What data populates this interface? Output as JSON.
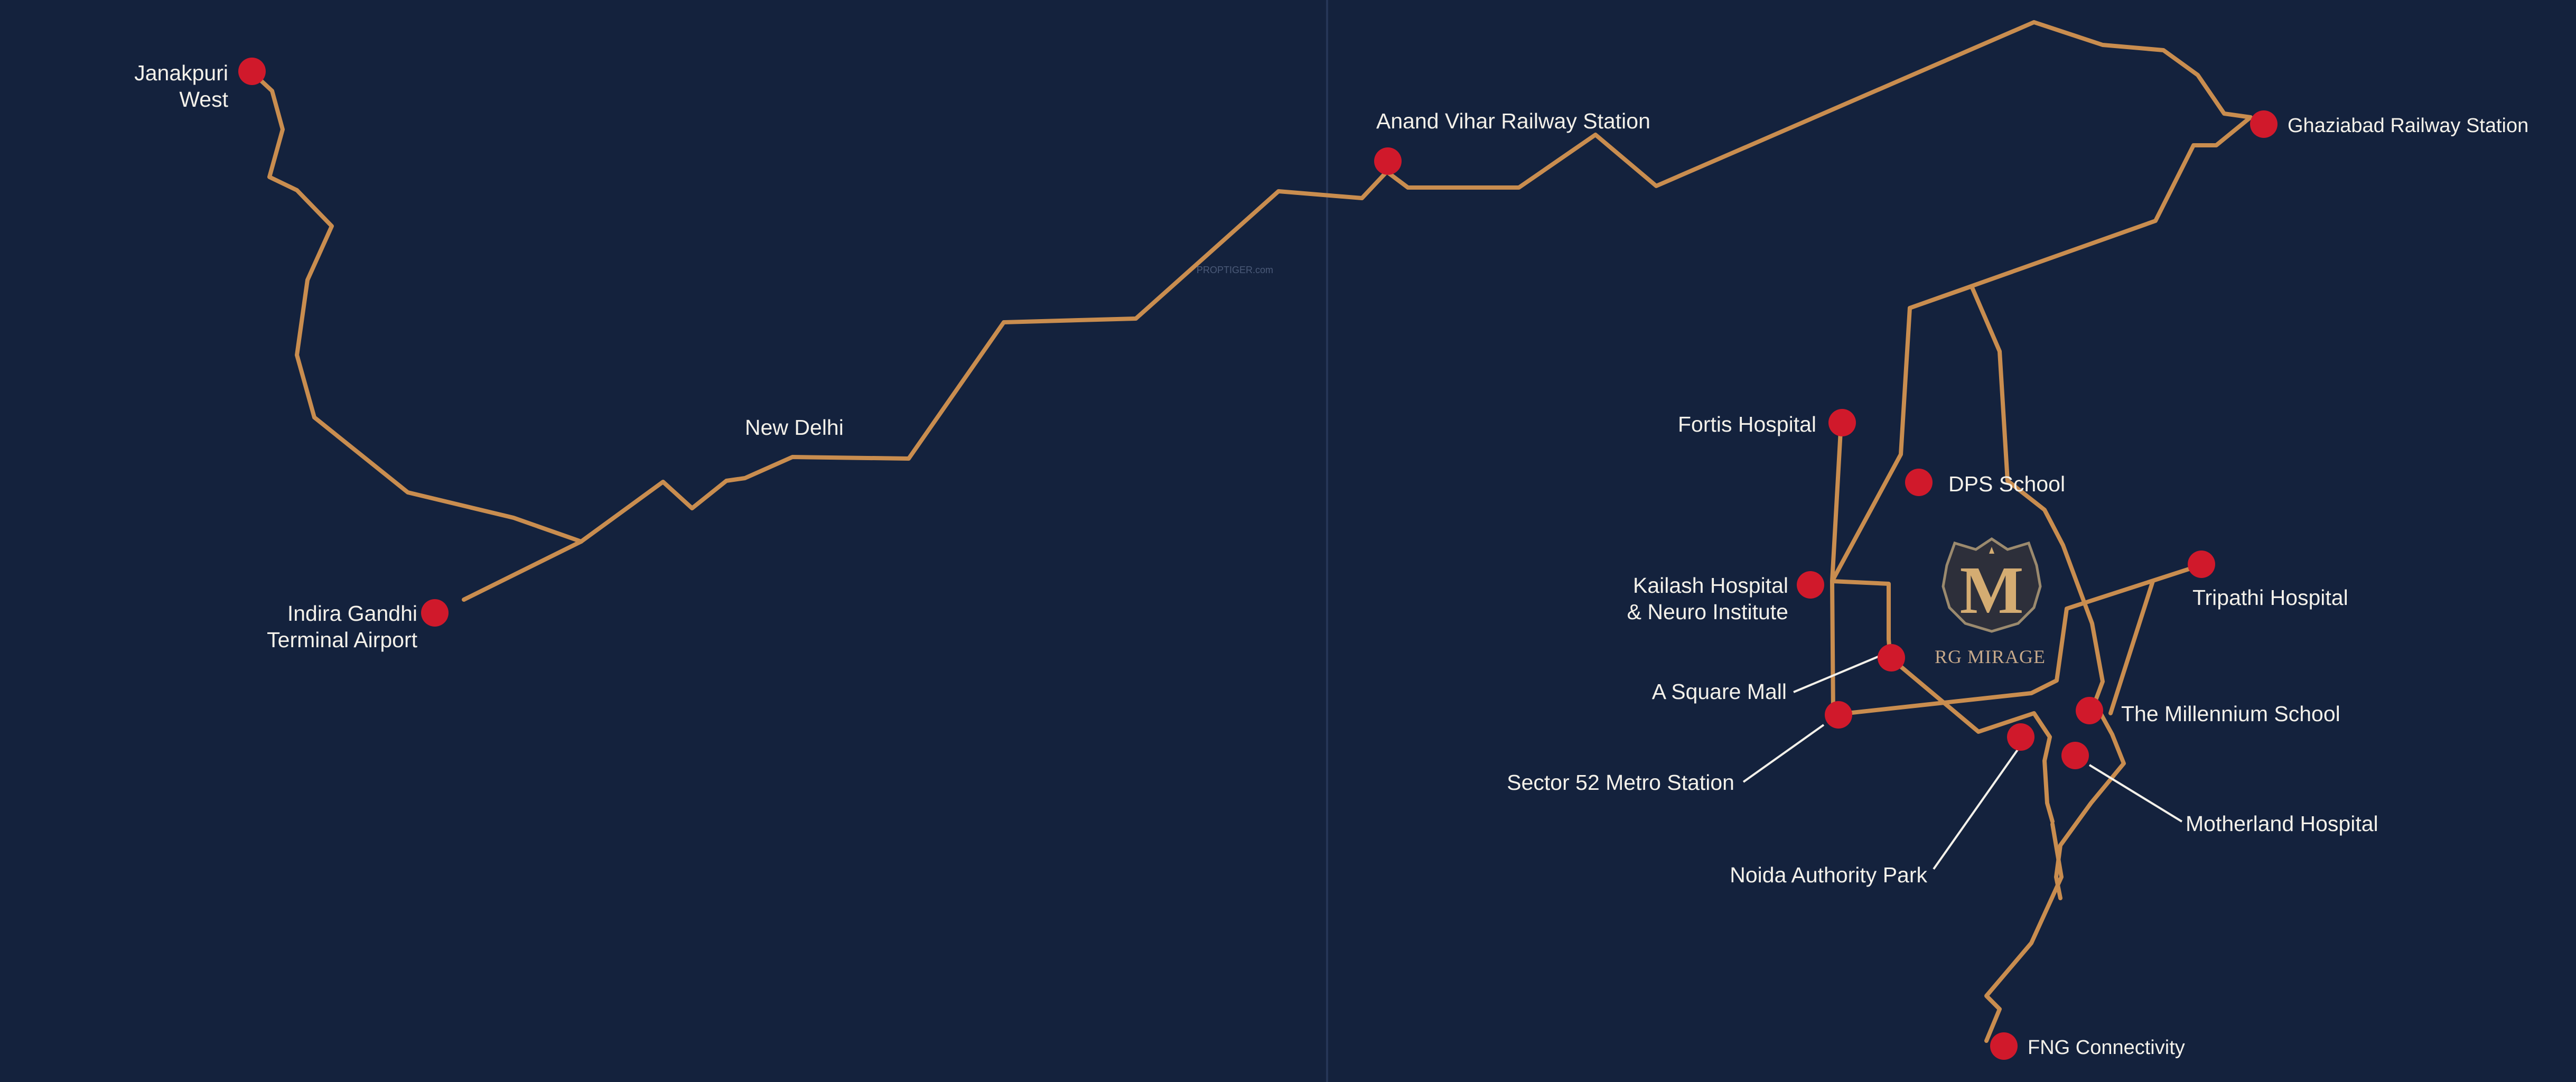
{
  "map": {
    "watermark": "PROPTIGER.com",
    "project": {
      "logo_letter": "M",
      "name": "RG MIRAGE"
    },
    "locations": {
      "janakpuri_west": [
        "Janakpuri",
        "West"
      ],
      "igi_airport": [
        "Indira Gandhi",
        "Terminal Airport"
      ],
      "new_delhi": "New Delhi",
      "anand_vihar": "Anand Vihar Railway Station",
      "ghaziabad": "Ghaziabad Railway Station",
      "fortis": "Fortis Hospital",
      "dps": "DPS School",
      "kailash": [
        "Kailash Hospital",
        "& Neuro Institute"
      ],
      "tripathi": "Tripathi Hospital",
      "a_square_mall": "A Square Mall",
      "millennium": "The Millennium School",
      "sector52": "Sector 52 Metro Station",
      "motherland": "Motherland Hospital",
      "noida_authority_park": "Noida Authority Park",
      "fng": "FNG Connectivity"
    },
    "colors": {
      "background": "#14223d",
      "road": "#c98d4f",
      "marker": "#d0192b",
      "label": "#f4f1ea",
      "logo_gold": "#d4ac72"
    }
  }
}
